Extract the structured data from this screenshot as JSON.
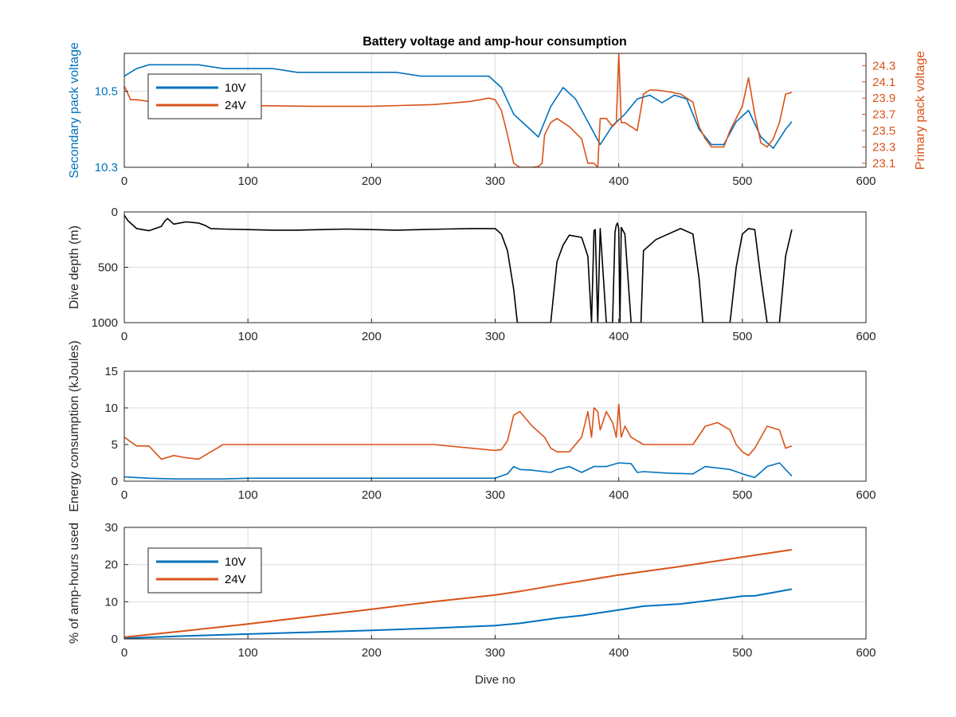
{
  "title": "Battery voltage and amp-hour consumption",
  "colors": {
    "v10": "#0072BD",
    "v24": "#D95319",
    "depth": "#000000",
    "grid": "#DCDCDC",
    "axis": "#262626"
  },
  "chart_data": [
    {
      "type": "line",
      "name": "voltage",
      "title": "Battery voltage and amp-hour consumption",
      "xlabel": "",
      "ylabel": "Secondary pack voltage",
      "ylabel_right": "Primary pack voltage",
      "xlim": [
        0,
        600
      ],
      "ylim": [
        10.3,
        10.6
      ],
      "ylim_right": [
        23.05,
        24.45
      ],
      "xticks": [
        "0",
        "100",
        "200",
        "300",
        "400",
        "500",
        "600"
      ],
      "yticks": [
        "10.3",
        "10.5"
      ],
      "yticks_right": [
        "23.1",
        "23.3",
        "23.5",
        "23.7",
        "23.9",
        "24.1",
        "24.3"
      ],
      "grid": true,
      "legend": {
        "placement": "top-left",
        "entries": [
          "10V",
          "24V"
        ]
      },
      "series": [
        {
          "name": "10V",
          "axis": "left",
          "x": [
            0,
            10,
            20,
            40,
            60,
            80,
            100,
            120,
            140,
            160,
            180,
            200,
            220,
            240,
            260,
            280,
            295,
            305,
            315,
            325,
            335,
            345,
            355,
            365,
            375,
            385,
            395,
            405,
            415,
            425,
            435,
            445,
            455,
            465,
            475,
            485,
            495,
            505,
            515,
            525,
            535,
            540
          ],
          "y": [
            10.54,
            10.56,
            10.57,
            10.57,
            10.57,
            10.56,
            10.56,
            10.56,
            10.55,
            10.55,
            10.55,
            10.55,
            10.55,
            10.54,
            10.54,
            10.54,
            10.54,
            10.51,
            10.44,
            10.41,
            10.38,
            10.46,
            10.51,
            10.48,
            10.42,
            10.36,
            10.41,
            10.44,
            10.48,
            10.49,
            10.47,
            10.49,
            10.48,
            10.4,
            10.36,
            10.36,
            10.42,
            10.45,
            10.38,
            10.35,
            10.4,
            10.42
          ]
        },
        {
          "name": "24V",
          "axis": "right",
          "x": [
            0,
            3,
            5,
            10,
            20,
            40,
            60,
            80,
            100,
            150,
            200,
            250,
            280,
            295,
            300,
            305,
            310,
            315,
            320,
            330,
            335,
            338,
            340,
            345,
            350,
            360,
            370,
            375,
            380,
            383,
            385,
            390,
            395,
            398,
            400,
            402,
            405,
            410,
            415,
            420,
            425,
            430,
            440,
            450,
            460,
            465,
            470,
            475,
            480,
            485,
            490,
            500,
            505,
            510,
            515,
            520,
            525,
            530,
            535,
            540
          ],
          "y": [
            24.05,
            23.95,
            23.88,
            23.88,
            23.86,
            23.86,
            23.84,
            23.82,
            23.81,
            23.8,
            23.8,
            23.82,
            23.86,
            23.9,
            23.88,
            23.75,
            23.45,
            23.1,
            23.05,
            23.05,
            23.06,
            23.1,
            23.45,
            23.6,
            23.65,
            23.55,
            23.4,
            23.1,
            23.1,
            23.05,
            23.65,
            23.65,
            23.55,
            23.6,
            24.45,
            23.6,
            23.6,
            23.55,
            23.5,
            23.95,
            24.0,
            24.0,
            23.98,
            23.95,
            23.85,
            23.55,
            23.4,
            23.3,
            23.3,
            23.3,
            23.5,
            23.8,
            24.15,
            23.7,
            23.35,
            23.3,
            23.4,
            23.6,
            23.95,
            23.97
          ]
        }
      ]
    },
    {
      "type": "line",
      "name": "depth",
      "xlabel": "",
      "ylabel": "Dive depth (m)",
      "xlim": [
        0,
        600
      ],
      "ylim": [
        0,
        1000
      ],
      "y_reversed": true,
      "xticks": [
        "0",
        "100",
        "200",
        "300",
        "400",
        "500",
        "600"
      ],
      "yticks": [
        "0",
        "500",
        "1000"
      ],
      "grid": true,
      "series": [
        {
          "name": "",
          "x": [
            0,
            3,
            10,
            20,
            30,
            33,
            35,
            40,
            50,
            60,
            65,
            70,
            80,
            100,
            120,
            140,
            160,
            180,
            200,
            220,
            240,
            260,
            280,
            300,
            305,
            310,
            315,
            318,
            320,
            330,
            340,
            345,
            350,
            355,
            360,
            370,
            375,
            378,
            380,
            381,
            383,
            385,
            390,
            395,
            397,
            398,
            399,
            400,
            401,
            402,
            405,
            410,
            415,
            418,
            420,
            425,
            430,
            440,
            450,
            460,
            465,
            468,
            470,
            480,
            490,
            495,
            500,
            505,
            510,
            515,
            520,
            530,
            535,
            540
          ],
          "y": [
            30,
            80,
            150,
            170,
            130,
            80,
            60,
            110,
            90,
            100,
            120,
            150,
            155,
            160,
            165,
            165,
            160,
            155,
            160,
            165,
            160,
            155,
            150,
            150,
            200,
            350,
            700,
            1000,
            1000,
            1000,
            1000,
            1000,
            450,
            300,
            210,
            230,
            400,
            1000,
            170,
            160,
            1000,
            150,
            1000,
            1000,
            180,
            120,
            100,
            150,
            1000,
            140,
            200,
            1000,
            1000,
            1000,
            350,
            300,
            250,
            200,
            150,
            200,
            600,
            1000,
            1000,
            1000,
            1000,
            500,
            200,
            150,
            160,
            600,
            1000,
            1000,
            400,
            160
          ]
        }
      ]
    },
    {
      "type": "line",
      "name": "energy",
      "xlabel": "",
      "ylabel": "Energy consumption (kJoules)",
      "xlim": [
        0,
        600
      ],
      "ylim": [
        0,
        15
      ],
      "xticks": [
        "0",
        "100",
        "200",
        "300",
        "400",
        "500",
        "600"
      ],
      "yticks": [
        "0",
        "5",
        "10",
        "15"
      ],
      "grid": true,
      "series": [
        {
          "name": "10V",
          "x": [
            0,
            10,
            20,
            40,
            60,
            80,
            100,
            150,
            200,
            250,
            300,
            310,
            315,
            320,
            330,
            345,
            350,
            360,
            370,
            380,
            390,
            400,
            410,
            415,
            420,
            440,
            460,
            470,
            480,
            490,
            500,
            510,
            520,
            530,
            540
          ],
          "y": [
            0.6,
            0.5,
            0.4,
            0.3,
            0.3,
            0.3,
            0.4,
            0.4,
            0.4,
            0.4,
            0.4,
            1.0,
            2.0,
            1.6,
            1.5,
            1.2,
            1.6,
            2.0,
            1.2,
            2.0,
            2.0,
            2.5,
            2.4,
            1.2,
            1.3,
            1.1,
            1.0,
            2.0,
            1.8,
            1.6,
            1.0,
            0.5,
            2.0,
            2.5,
            0.7
          ]
        },
        {
          "name": "24V",
          "x": [
            0,
            10,
            20,
            30,
            40,
            50,
            60,
            70,
            80,
            100,
            150,
            200,
            250,
            300,
            305,
            310,
            315,
            320,
            330,
            340,
            345,
            350,
            360,
            370,
            375,
            378,
            380,
            383,
            385,
            390,
            395,
            398,
            400,
            402,
            405,
            410,
            415,
            420,
            430,
            440,
            450,
            460,
            470,
            480,
            490,
            495,
            500,
            505,
            510,
            520,
            530,
            535,
            540
          ],
          "y": [
            6,
            4.8,
            4.8,
            3.0,
            3.5,
            3.2,
            3.0,
            4.0,
            5.0,
            5.0,
            5.0,
            5.0,
            5.0,
            4.2,
            4.3,
            5.5,
            9.0,
            9.5,
            7.5,
            6.0,
            4.5,
            4.0,
            4.0,
            6.0,
            9.5,
            6.0,
            10.0,
            9.5,
            7.0,
            9.5,
            8.0,
            6.0,
            10.5,
            6.0,
            7.5,
            6.0,
            5.5,
            5.0,
            5.0,
            5.0,
            5.0,
            5.0,
            7.5,
            8.0,
            7.0,
            5.0,
            4.0,
            3.5,
            4.5,
            7.5,
            7.0,
            4.5,
            4.8
          ]
        }
      ]
    },
    {
      "type": "line",
      "name": "amphours",
      "xlabel": "Dive no",
      "ylabel": "% of amp-hours used",
      "xlim": [
        0,
        600
      ],
      "ylim": [
        0,
        30
      ],
      "xticks": [
        "0",
        "100",
        "200",
        "300",
        "400",
        "500",
        "600"
      ],
      "yticks": [
        "0",
        "10",
        "20",
        "30"
      ],
      "grid": true,
      "legend": {
        "placement": "top-left",
        "entries": [
          "10V",
          "24V"
        ]
      },
      "series": [
        {
          "name": "10V",
          "x": [
            0,
            50,
            100,
            150,
            200,
            250,
            300,
            320,
            350,
            370,
            400,
            420,
            450,
            480,
            500,
            510,
            520,
            540
          ],
          "y": [
            0.2,
            0.8,
            1.3,
            1.8,
            2.3,
            2.9,
            3.6,
            4.2,
            5.6,
            6.3,
            7.8,
            8.8,
            9.4,
            10.6,
            11.5,
            11.6,
            12.2,
            13.4
          ]
        },
        {
          "name": "24V",
          "x": [
            0,
            50,
            100,
            150,
            200,
            250,
            300,
            320,
            350,
            400,
            450,
            500,
            540
          ],
          "y": [
            0.5,
            2.2,
            4.0,
            6.0,
            8.0,
            10.0,
            11.8,
            12.8,
            14.5,
            17.2,
            19.5,
            22.0,
            24.0
          ]
        }
      ]
    }
  ]
}
